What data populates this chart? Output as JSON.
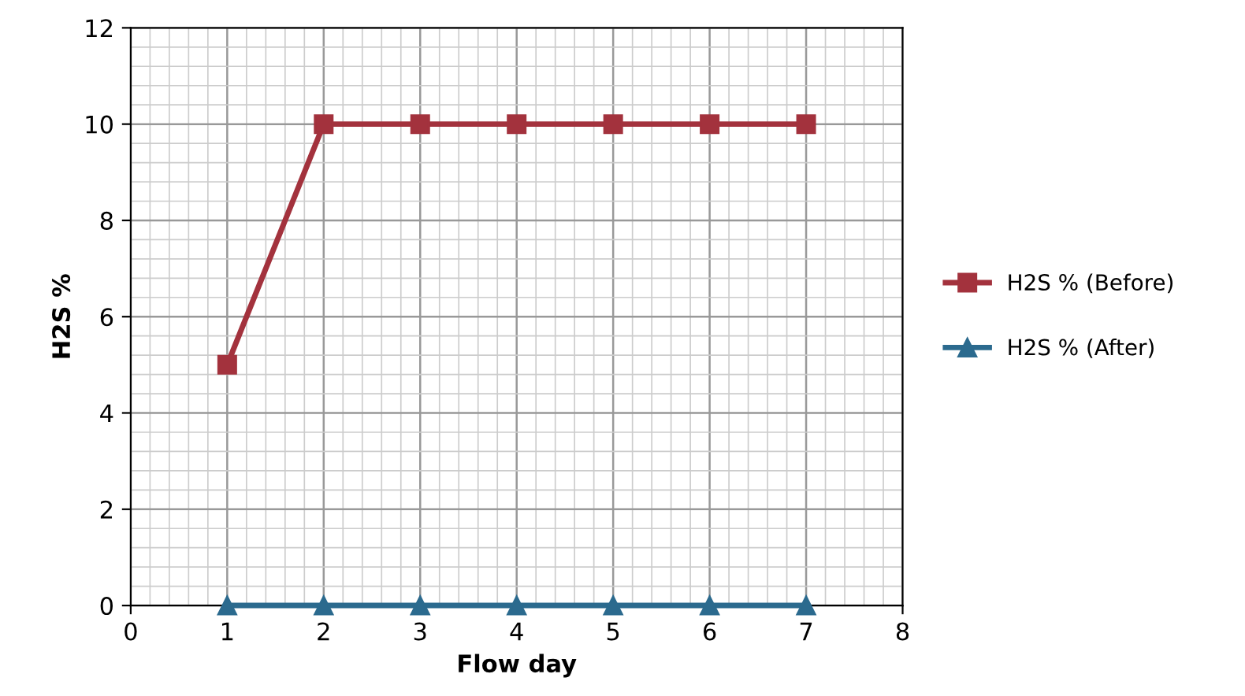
{
  "chart_data": {
    "type": "line",
    "xlabel": "Flow day",
    "ylabel": "H2S %",
    "x": [
      1,
      2,
      3,
      4,
      5,
      6,
      7
    ],
    "series": [
      {
        "name": "H2S % (Before)",
        "color": "#a3323d",
        "values": [
          5,
          10,
          10,
          10,
          10,
          10,
          10
        ],
        "marker": "square"
      },
      {
        "name": "H2S % (After)",
        "color": "#2b6a8e",
        "values": [
          0,
          0,
          0,
          0,
          0,
          0,
          0
        ],
        "marker": "triangle"
      }
    ],
    "xlim": [
      0,
      8
    ],
    "xticks": [
      0,
      1,
      2,
      3,
      4,
      5,
      6,
      7,
      8
    ],
    "ylim": [
      0,
      12
    ],
    "yticks": [
      0,
      2,
      4,
      6,
      8,
      10,
      12
    ],
    "grid": true,
    "legend": "right",
    "line_style": "solid"
  }
}
